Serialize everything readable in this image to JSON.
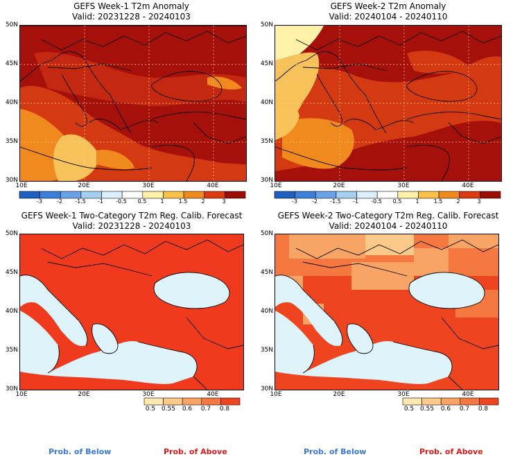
{
  "panels": [
    {
      "title": "GEFS Week-1 T2m Anomaly",
      "valid": "Valid: 20231228 - 20240103"
    },
    {
      "title": "GEFS Week-2 T2m Anomaly",
      "valid": "Valid: 20240104 - 20240110"
    },
    {
      "title": "GEFS Week-1 Two-Category T2m Reg. Calib. Forecast",
      "valid": "Valid: 20231228 - 20240103"
    },
    {
      "title": "GEFS Week-2 Two-Category T2m Reg. Calib. Forecast",
      "valid": "Valid: 20240104 - 20240110"
    }
  ],
  "axes": {
    "lat_labels": [
      "50N",
      "45N",
      "40N",
      "35N",
      "30N"
    ],
    "lon_labels": [
      "10E",
      "20E",
      "30E",
      "40E"
    ]
  },
  "anomaly_colorbar": {
    "ticks": [
      "-3",
      "-2",
      "-1.5",
      "-1",
      "-0.5",
      "0.5",
      "1",
      "1.5",
      "2",
      "3"
    ],
    "colors": [
      "#1f5fc0",
      "#3d7fd8",
      "#6aa3e8",
      "#a7cff2",
      "#dcefff",
      "#ffffff",
      "#fff1a8",
      "#f9c04a",
      "#f08a1e",
      "#dc3a10",
      "#9b0d05"
    ]
  },
  "prob_colorbar": {
    "ticks": [
      "0.5",
      "0.55",
      "0.6",
      "0.7",
      "0.8"
    ],
    "colors": [
      "#fde8b2",
      "#fbc98a",
      "#f8a465",
      "#f47840",
      "#ef4420"
    ]
  },
  "footer": {
    "below": "Prob. of Below",
    "above": "Prob. of Above"
  },
  "colors": {
    "sea": "#dff3fa",
    "land_prob_above": "#ef3a1e",
    "anom_dark": "#a5100a",
    "anom_mid": "#d33a12",
    "anom_orange": "#f08a1e",
    "anom_yellow": "#f7c25a"
  }
}
